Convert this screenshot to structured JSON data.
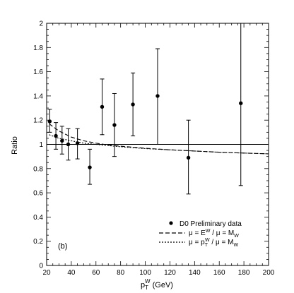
{
  "chart_data": {
    "type": "scatter",
    "xlabel": {
      "main": "p",
      "sub": "T",
      "sup": "W",
      "unit": " (GeV)"
    },
    "ylabel": "Ratio",
    "xlim": [
      20,
      200
    ],
    "ylim": [
      0,
      2
    ],
    "xticks": [
      20,
      40,
      60,
      80,
      100,
      120,
      140,
      160,
      180,
      200
    ],
    "xtick_labels": [
      "20",
      "40",
      "60",
      "80",
      "100",
      "120",
      "140",
      "160",
      "180",
      "200"
    ],
    "yticks": [
      0,
      0.2,
      0.4,
      0.6,
      0.8,
      1,
      1.2,
      1.4,
      1.6,
      1.8,
      2
    ],
    "ytick_labels": [
      "0",
      "0.2",
      "0.4",
      "0.6",
      "0.8",
      "1",
      "1.2",
      "1.4",
      "1.6",
      "1.8",
      "2"
    ],
    "reference_line": 1,
    "panel_label": "(b)",
    "grid": false,
    "legend_position": "bottom-right",
    "series": [
      {
        "name": "D0 Preliminary data",
        "style": "points-with-errorbars",
        "points": [
          {
            "x": 22.5,
            "y": 1.19,
            "lo": 1.1,
            "hi": 1.29
          },
          {
            "x": 27.5,
            "y": 1.07,
            "lo": 0.96,
            "hi": 1.18
          },
          {
            "x": 32.5,
            "y": 1.03,
            "lo": 0.92,
            "hi": 1.15
          },
          {
            "x": 37.5,
            "y": 1.0,
            "lo": 0.87,
            "hi": 1.13
          },
          {
            "x": 45.0,
            "y": 1.01,
            "lo": 0.88,
            "hi": 1.13
          },
          {
            "x": 55.0,
            "y": 0.81,
            "lo": 0.67,
            "hi": 0.96
          },
          {
            "x": 65.0,
            "y": 1.31,
            "lo": 1.08,
            "hi": 1.54
          },
          {
            "x": 75.0,
            "y": 1.16,
            "lo": 0.9,
            "hi": 1.42
          },
          {
            "x": 90.0,
            "y": 1.33,
            "lo": 1.07,
            "hi": 1.59
          },
          {
            "x": 110.0,
            "y": 1.4,
            "lo": 1.0,
            "hi": 1.79
          },
          {
            "x": 135.0,
            "y": 0.89,
            "lo": 0.59,
            "hi": 1.2
          },
          {
            "x": 177.5,
            "y": 1.34,
            "lo": 0.66,
            "hi": 2.0
          }
        ]
      },
      {
        "name_parts": {
          "a": "μ = E",
          "a_sup": "W",
          "b": " / μ = M",
          "b_sub": "W"
        },
        "style": "dashed",
        "points": [
          [
            22,
            1.17
          ],
          [
            30,
            1.11
          ],
          [
            40,
            1.06
          ],
          [
            50,
            1.03
          ],
          [
            60,
            1.01
          ],
          [
            70,
            0.995
          ],
          [
            80,
            0.985
          ],
          [
            100,
            0.968
          ],
          [
            120,
            0.955
          ],
          [
            140,
            0.945
          ],
          [
            160,
            0.935
          ],
          [
            180,
            0.928
          ],
          [
            200,
            0.922
          ]
        ]
      },
      {
        "name_parts": {
          "a": "μ = p",
          "a_sup": "W",
          "a_sub": "T",
          "b": " / μ = M",
          "b_sub": "W"
        },
        "style": "dotted",
        "points": [
          [
            22,
            1.08
          ],
          [
            30,
            1.05
          ],
          [
            40,
            1.03
          ],
          [
            50,
            1.01
          ],
          [
            60,
            1.0
          ],
          [
            70,
            0.99
          ],
          [
            80,
            0.98
          ],
          [
            100,
            0.965
          ],
          [
            120,
            0.955
          ],
          [
            140,
            0.945
          ],
          [
            160,
            0.935
          ],
          [
            180,
            0.928
          ],
          [
            200,
            0.922
          ]
        ]
      }
    ]
  }
}
